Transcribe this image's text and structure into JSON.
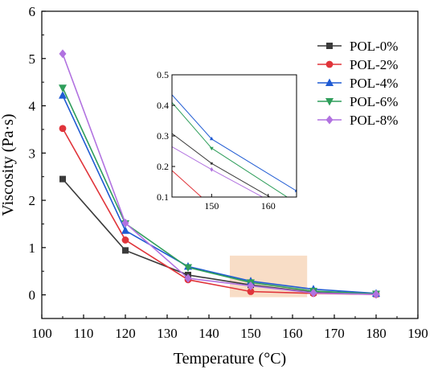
{
  "chart_data": {
    "type": "line",
    "xlabel": "Temperature (°C)",
    "ylabel": "Viscosity (Pa·s)",
    "xlim": [
      100,
      190
    ],
    "ylim": [
      -0.5,
      6
    ],
    "xticks": [
      100,
      110,
      120,
      130,
      140,
      150,
      160,
      170,
      180,
      190
    ],
    "yticks": [
      0,
      1,
      2,
      3,
      4,
      5,
      6
    ],
    "x": [
      105,
      120,
      135,
      150,
      165,
      180
    ],
    "legend_position": "top-right",
    "highlight_region": {
      "x": [
        145,
        163.5
      ],
      "y": [
        -0.05,
        0.83
      ],
      "color": "#f8ddc6"
    },
    "series": [
      {
        "name": "POL-0%",
        "color": "#3a3a3a",
        "marker": "square",
        "values": [
          2.45,
          0.94,
          0.42,
          0.21,
          0.05,
          0.02
        ]
      },
      {
        "name": "POL-2%",
        "color": "#e0343a",
        "marker": "circle",
        "values": [
          3.52,
          1.16,
          0.32,
          0.07,
          0.03,
          0.01
        ]
      },
      {
        "name": "POL-4%",
        "color": "#1f5bd3",
        "marker": "triangle-up",
        "values": [
          4.22,
          1.36,
          0.6,
          0.29,
          0.12,
          0.03
        ]
      },
      {
        "name": "POL-6%",
        "color": "#2f9e5b",
        "marker": "triangle-down",
        "values": [
          4.38,
          1.51,
          0.58,
          0.26,
          0.08,
          0.02
        ]
      },
      {
        "name": "POL-8%",
        "color": "#b172e0",
        "marker": "diamond",
        "values": [
          5.1,
          1.52,
          0.35,
          0.19,
          0.04,
          0.01
        ]
      }
    ],
    "inset": {
      "xlim": [
        143,
        165
      ],
      "ylim": [
        0.1,
        0.5
      ],
      "xticks": [
        150,
        160
      ],
      "yticks": [
        0.1,
        0.2,
        0.3,
        0.4,
        0.5
      ],
      "ytick_labels": [
        "0.1",
        "0.2",
        "0.3",
        "0.4",
        "0.5"
      ],
      "xtick_labels": [
        "150",
        "160"
      ]
    }
  }
}
